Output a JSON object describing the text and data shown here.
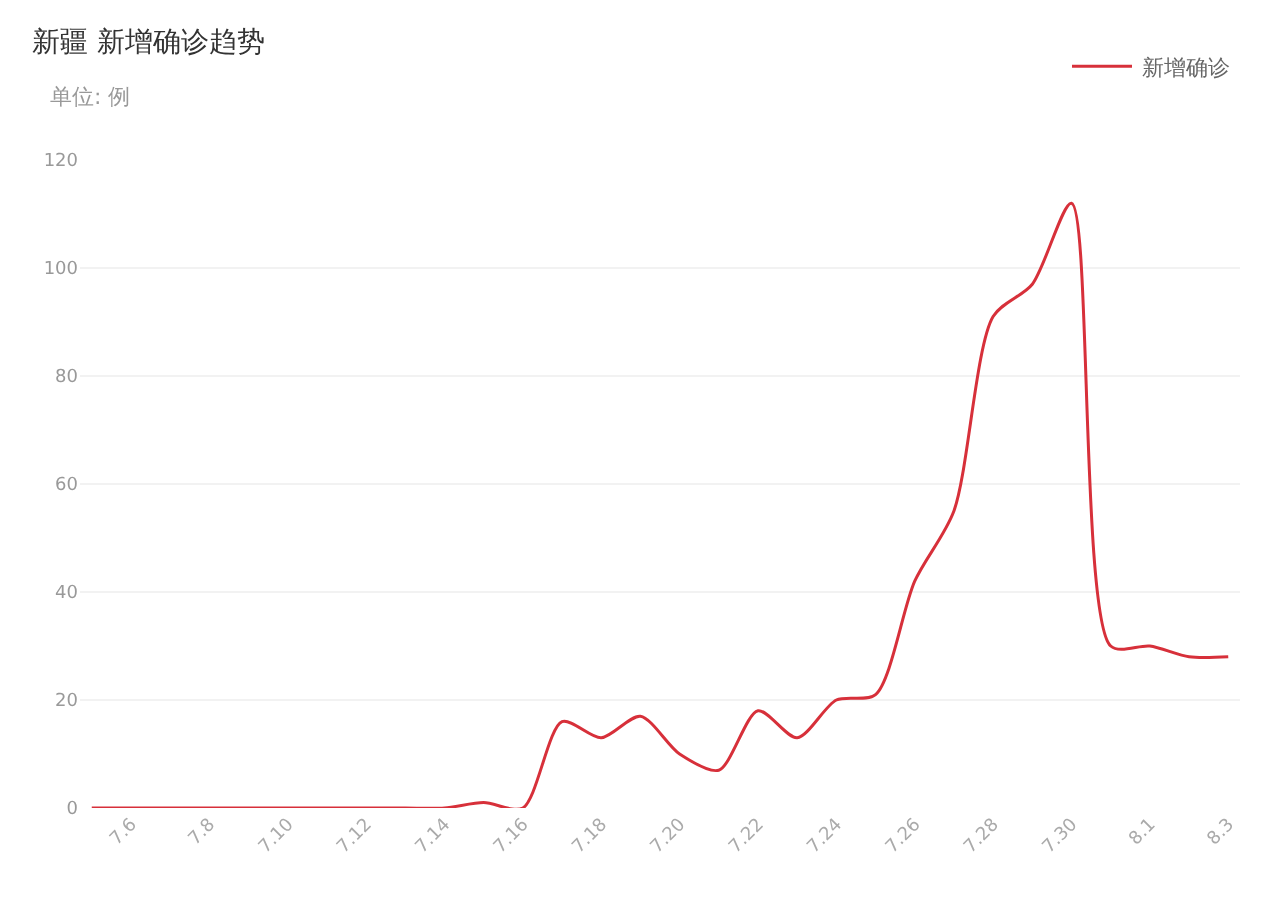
{
  "chart_data": {
    "type": "line",
    "title": "新疆 新增确诊趋势",
    "subtitle": "单位: 例",
    "categories": [
      null,
      "7.6",
      null,
      "7.8",
      null,
      "7.10",
      null,
      "7.12",
      null,
      "7.14",
      null,
      "7.16",
      null,
      "7.18",
      null,
      "7.20",
      null,
      "7.22",
      null,
      "7.24",
      null,
      "7.26",
      null,
      "7.28",
      null,
      "7.30",
      null,
      "8.1",
      null,
      "8.3"
    ],
    "series": [
      {
        "name": "新增确诊",
        "color": "#d7303a",
        "values": [
          0,
          0,
          0,
          0,
          0,
          0,
          0,
          0,
          0,
          0,
          1,
          0,
          16,
          13,
          17,
          10,
          7,
          18,
          13,
          20,
          21,
          42,
          55,
          91,
          97,
          112,
          30,
          30,
          28,
          28
        ]
      }
    ],
    "ylim": [
      0,
      120
    ],
    "yticks": [
      0,
      20,
      40,
      60,
      80,
      100,
      120
    ],
    "grid": "y",
    "legend": "top right",
    "marker": "none",
    "line_style": "solid"
  }
}
